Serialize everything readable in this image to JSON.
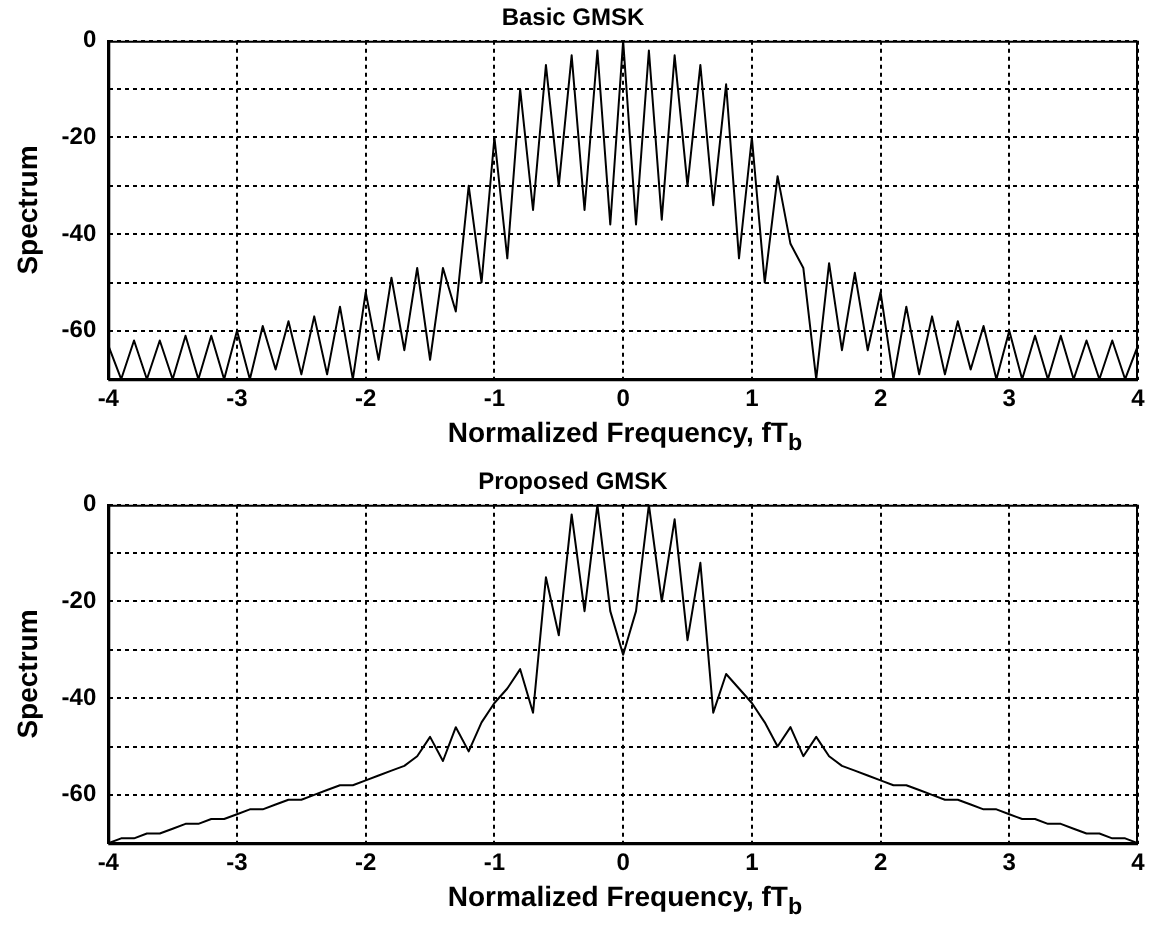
{
  "chart_data": [
    {
      "type": "line",
      "title": "Basic GMSK",
      "xlabel": "Normalized Frequency, fT$_{b}$",
      "ylabel": "Spectrum",
      "grid": true,
      "marker": "none",
      "line_style": "solid",
      "xlim": [
        -4,
        4
      ],
      "xticks": [
        -4,
        -3,
        -2,
        -1,
        0,
        1,
        2,
        3,
        4
      ],
      "ylim": [
        -70,
        0
      ],
      "yticks": [
        {
          "value": -70,
          "label": null
        },
        -60,
        {
          "value": -50,
          "label": null
        },
        -40,
        {
          "value": -30,
          "label": null
        },
        -20,
        {
          "value": -10,
          "label": null
        },
        0
      ],
      "x": [
        -4,
        -3.9,
        -3.8,
        -3.7,
        -3.6,
        -3.5,
        -3.4,
        -3.3,
        -3.2,
        -3.1,
        -3,
        -2.9,
        -2.8,
        -2.7,
        -2.6,
        -2.5,
        -2.4,
        -2.3,
        -2.2,
        -2.1,
        -2,
        -1.9,
        -1.8,
        -1.7,
        -1.6,
        -1.5,
        -1.4,
        -1.3,
        -1.2,
        -1.1,
        -1,
        -0.9,
        -0.8,
        -0.7,
        -0.6,
        -0.5,
        -0.4,
        -0.3,
        -0.2,
        -0.1,
        0,
        0.1,
        0.2,
        0.3,
        0.4,
        0.5,
        0.6,
        0.7,
        0.8,
        0.9,
        1,
        1.1,
        1.2,
        1.3,
        1.4,
        1.5,
        1.6,
        1.7,
        1.8,
        1.9,
        2,
        2.1,
        2.2,
        2.3,
        2.4,
        2.5,
        2.6,
        2.7,
        2.8,
        2.9,
        3,
        3.1,
        3.2,
        3.3,
        3.4,
        3.5,
        3.6,
        3.7,
        3.8,
        3.9,
        4
      ],
      "series": [
        {
          "color": "#000000",
          "values": [
            -63,
            -70,
            -62,
            -70,
            -62,
            -70,
            -61,
            -70,
            -61,
            -70,
            -60,
            -70,
            -59,
            -68,
            -58,
            -69,
            -57,
            -69,
            -55,
            -70,
            -52,
            -66,
            -49,
            -64,
            -47,
            -66,
            -47,
            -56,
            -30,
            -50,
            -20,
            -45,
            -10,
            -35,
            -5,
            -30,
            -3,
            -35,
            -2,
            -38,
            0,
            -38,
            -2,
            -37,
            -3,
            -30,
            -5,
            -34,
            -9,
            -45,
            -20,
            -50,
            -28,
            -42,
            -47,
            -70,
            -46,
            -64,
            -48,
            -64,
            -52,
            -70,
            -55,
            -69,
            -57,
            -69,
            -58,
            -68,
            -59,
            -70,
            -60,
            -70,
            -61,
            -70,
            -61,
            -70,
            -62,
            -70,
            -62,
            -70,
            -63
          ]
        }
      ]
    },
    {
      "type": "line",
      "title": "Proposed GMSK",
      "xlabel": "Normalized Frequency, fT$_{b}$",
      "ylabel": "Spectrum",
      "grid": true,
      "marker": "none",
      "line_style": "solid",
      "xlim": [
        -4,
        4
      ],
      "xticks": [
        -4,
        -3,
        -2,
        -1,
        0,
        1,
        2,
        3,
        4
      ],
      "ylim": [
        -70,
        0
      ],
      "yticks": [
        {
          "value": -70,
          "label": null
        },
        -60,
        {
          "value": -50,
          "label": null
        },
        -40,
        {
          "value": -30,
          "label": null
        },
        -20,
        {
          "value": -10,
          "label": null
        },
        0
      ],
      "x": [
        -4,
        -3.9,
        -3.8,
        -3.7,
        -3.6,
        -3.5,
        -3.4,
        -3.3,
        -3.2,
        -3.1,
        -3,
        -2.9,
        -2.8,
        -2.7,
        -2.6,
        -2.5,
        -2.4,
        -2.3,
        -2.2,
        -2.1,
        -2,
        -1.9,
        -1.8,
        -1.7,
        -1.6,
        -1.5,
        -1.4,
        -1.3,
        -1.2,
        -1.1,
        -1,
        -0.9,
        -0.8,
        -0.7,
        -0.6,
        -0.5,
        -0.4,
        -0.3,
        -0.2,
        -0.1,
        0,
        0.1,
        0.2,
        0.3,
        0.4,
        0.5,
        0.6,
        0.7,
        0.8,
        0.9,
        1,
        1.1,
        1.2,
        1.3,
        1.4,
        1.5,
        1.6,
        1.7,
        1.8,
        1.9,
        2,
        2.1,
        2.2,
        2.3,
        2.4,
        2.5,
        2.6,
        2.7,
        2.8,
        2.9,
        3,
        3.1,
        3.2,
        3.3,
        3.4,
        3.5,
        3.6,
        3.7,
        3.8,
        3.9,
        4
      ],
      "series": [
        {
          "color": "#000000",
          "values": [
            -70,
            -69,
            -69,
            -68,
            -68,
            -67,
            -66,
            -66,
            -65,
            -65,
            -64,
            -63,
            -63,
            -62,
            -61,
            -61,
            -60,
            -59,
            -58,
            -58,
            -57,
            -56,
            -55,
            -54,
            -52,
            -48,
            -53,
            -46,
            -51,
            -45,
            -41,
            -38,
            -34,
            -43,
            -15,
            -27,
            -2,
            -22,
            0,
            -22,
            -31,
            -22,
            0,
            -20,
            -3,
            -28,
            -12,
            -43,
            -35,
            -38,
            -41,
            -45,
            -50,
            -46,
            -52,
            -48,
            -52,
            -54,
            -55,
            -56,
            -57,
            -58,
            -58,
            -59,
            -60,
            -61,
            -61,
            -62,
            -63,
            -63,
            -64,
            -65,
            -65,
            -66,
            -66,
            -67,
            -68,
            -68,
            -69,
            -69,
            -70
          ]
        }
      ]
    }
  ]
}
